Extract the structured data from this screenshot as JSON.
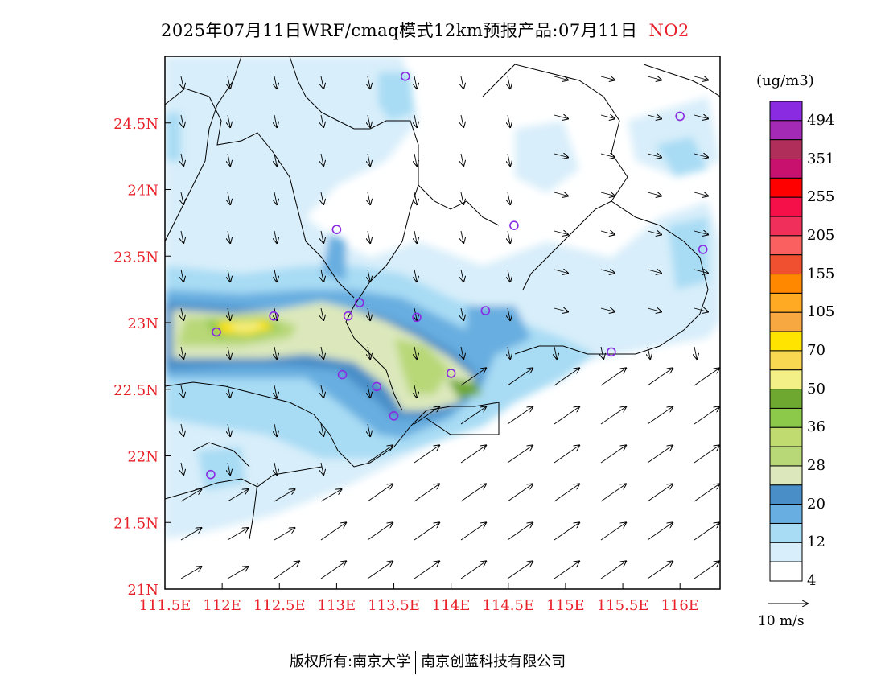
{
  "title": {
    "main": "2025年07月11日WRF/cmaq模式12km预报产品:07月11日",
    "species": "NO2",
    "species_color": "#e8202a"
  },
  "axes": {
    "lat_labels": [
      "24.5N",
      "24N",
      "23.5N",
      "23N",
      "22.5N",
      "22N",
      "21.5N",
      "21N"
    ],
    "lat_values": [
      24.5,
      24.0,
      23.5,
      23.0,
      22.5,
      22.0,
      21.5,
      21.0
    ],
    "lon_labels": [
      "111.5E",
      "112E",
      "112.5E",
      "113E",
      "113.5E",
      "114E",
      "114.5E",
      "115E",
      "115.5E",
      "116E"
    ],
    "lon_values": [
      111.5,
      112.0,
      112.5,
      113.0,
      113.5,
      114.0,
      114.5,
      115.0,
      115.5,
      116.0
    ],
    "label_color": "#e8202a",
    "lon_range": [
      111.5,
      116.35
    ],
    "lat_range": [
      21.0,
      25.0
    ]
  },
  "legend": {
    "unit": "(ug/m3)",
    "labels": [
      "494",
      "351",
      "255",
      "205",
      "155",
      "105",
      "70",
      "50",
      "36",
      "28",
      "20",
      "12",
      "4"
    ],
    "colors_top_to_bottom": [
      "#8a2be2",
      "#a32ab4",
      "#b02f5a",
      "#c8106e",
      "#ff0000",
      "#f5104a",
      "#f0305a",
      "#fa6060",
      "#f05030",
      "#ff8800",
      "#ffaa22",
      "#f8a840",
      "#ffe400",
      "#f8d850",
      "#f4f088",
      "#6ea830",
      "#8cc84a",
      "#c0dc70",
      "#b8d878",
      "#dce8bc",
      "#4a8ec8",
      "#68aee0",
      "#a8dcf4",
      "#d8eefa",
      "#ffffff"
    ]
  },
  "wind_reference": {
    "label": "10 m/s"
  },
  "stations": [
    {
      "lon": 113.6,
      "lat": 24.85
    },
    {
      "lon": 116.0,
      "lat": 24.55
    },
    {
      "lon": 113.0,
      "lat": 23.7
    },
    {
      "lon": 114.55,
      "lat": 23.73
    },
    {
      "lon": 116.2,
      "lat": 23.55
    },
    {
      "lon": 113.2,
      "lat": 23.15
    },
    {
      "lon": 112.45,
      "lat": 23.05
    },
    {
      "lon": 113.1,
      "lat": 23.05
    },
    {
      "lon": 113.7,
      "lat": 23.04
    },
    {
      "lon": 114.3,
      "lat": 23.09
    },
    {
      "lon": 111.95,
      "lat": 22.93
    },
    {
      "lon": 115.4,
      "lat": 22.78
    },
    {
      "lon": 113.05,
      "lat": 22.61
    },
    {
      "lon": 113.35,
      "lat": 22.52
    },
    {
      "lon": 114.0,
      "lat": 22.62
    },
    {
      "lon": 113.5,
      "lat": 22.3
    },
    {
      "lon": 111.9,
      "lat": 21.86
    }
  ],
  "footer": {
    "left": "版权所有:南京大学",
    "right": "南京创蓝科技有限公司"
  }
}
